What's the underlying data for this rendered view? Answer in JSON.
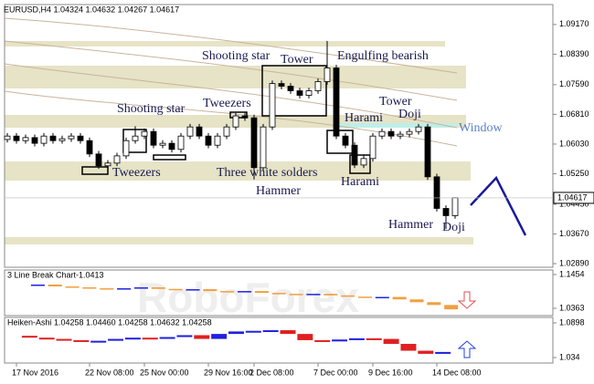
{
  "chart_data": [
    {
      "type": "candlestick",
      "title": "EURUSD,H4  1.04324 1.04632 1.04267 1.04617",
      "categories": [
        null,
        "17 Nov 2016",
        null,
        null,
        null,
        null,
        null,
        null,
        null,
        "22 Nov 08:00",
        null,
        null,
        null,
        null,
        null,
        "25 Nov 00:00",
        null,
        null,
        null,
        null,
        null,
        null,
        "29 Nov 16:00",
        null,
        null,
        null,
        null,
        "2 Dec 08:00",
        null,
        null,
        null,
        null,
        null,
        null,
        "7 Dec 00:00",
        null,
        null,
        null,
        null,
        null,
        "9 Dec 16:00",
        null,
        null,
        null,
        null,
        null,
        null,
        "14 Dec 08:00",
        null,
        null
      ],
      "open": [
        1.0615,
        1.0624,
        1.0612,
        1.062,
        1.0605,
        1.0624,
        1.0612,
        1.0617,
        1.0624,
        1.0612,
        1.0577,
        1.0546,
        1.0553,
        1.0572,
        1.0612,
        1.0624,
        1.0636,
        1.06,
        1.0605,
        1.0589,
        1.0624,
        1.0648,
        1.0624,
        1.06,
        1.0624,
        1.0648,
        1.0677,
        1.0672,
        1.0541,
        1.0648,
        1.0762,
        1.0755,
        1.0743,
        1.0731,
        1.0743,
        1.0767,
        1.0803,
        1.0624,
        1.06,
        1.0548,
        1.0565,
        1.0624,
        1.0636,
        1.0624,
        1.0629,
        1.0636,
        1.0648,
        1.0517,
        1.0434,
        1.0415
      ],
      "high": [
        1.0632,
        1.0632,
        1.0628,
        1.0628,
        1.0632,
        1.0632,
        1.0625,
        1.0632,
        1.0632,
        1.062,
        1.0585,
        1.0561,
        1.058,
        1.062,
        1.065,
        1.0644,
        1.0644,
        1.0613,
        1.0613,
        1.0632,
        1.0656,
        1.0656,
        1.0632,
        1.0632,
        1.0656,
        1.0685,
        1.0685,
        1.068,
        1.0656,
        1.077,
        1.077,
        1.0763,
        1.0751,
        1.0751,
        1.0775,
        1.0874,
        1.0811,
        1.0632,
        1.0608,
        1.0573,
        1.0632,
        1.0644,
        1.0644,
        1.0637,
        1.0644,
        1.0656,
        1.0656,
        1.0525,
        1.0442,
        1.0463
      ],
      "low": [
        1.0607,
        1.0604,
        1.0604,
        1.0597,
        1.0597,
        1.0604,
        1.0604,
        1.0609,
        1.0604,
        1.0569,
        1.0538,
        1.0538,
        1.0545,
        1.0564,
        1.0604,
        1.0616,
        1.0592,
        1.0592,
        1.0581,
        1.0581,
        1.0616,
        1.0616,
        1.0592,
        1.0592,
        1.0616,
        1.064,
        1.0664,
        1.051,
        1.0533,
        1.064,
        1.0747,
        1.0735,
        1.0723,
        1.0723,
        1.0735,
        1.0759,
        1.0616,
        1.0592,
        1.054,
        1.054,
        1.0557,
        1.0616,
        1.0616,
        1.0616,
        1.0621,
        1.0628,
        1.0509,
        1.0426,
        1.038,
        1.0407
      ],
      "close": [
        1.0624,
        1.0612,
        1.062,
        1.0605,
        1.0624,
        1.0612,
        1.0617,
        1.0624,
        1.0612,
        1.0577,
        1.0546,
        1.0553,
        1.0572,
        1.0612,
        1.0624,
        1.0636,
        1.06,
        1.0605,
        1.0589,
        1.0624,
        1.0648,
        1.0624,
        1.06,
        1.0624,
        1.0648,
        1.0677,
        1.0672,
        1.0541,
        1.0648,
        1.0762,
        1.0755,
        1.0743,
        1.0731,
        1.0743,
        1.0767,
        1.0803,
        1.0624,
        1.06,
        1.0548,
        1.0565,
        1.0624,
        1.0636,
        1.0624,
        1.0629,
        1.0636,
        1.0648,
        1.0517,
        1.0434,
        1.0415,
        1.0462
      ],
      "ylim": [
        1.02795,
        1.09694
      ],
      "yticks": [
        {
          "value": 1.0917,
          "label": "1.09170"
        },
        {
          "value": 1.0839,
          "label": "1.08390"
        },
        {
          "value": 1.0759,
          "label": "1.07590"
        },
        {
          "value": 1.0681,
          "label": "1.06810"
        },
        {
          "value": 1.0603,
          "label": "1.06030"
        },
        {
          "value": 1.0525,
          "label": "1.05250"
        },
        {
          "value": 1.0445,
          "label": "1.04450"
        },
        {
          "value": 1.0367,
          "label": "1.03670"
        },
        {
          "value": 1.0289,
          "label": "1.02890"
        }
      ],
      "price_label": {
        "value": 1.04617,
        "label": "1.04617"
      },
      "annotations": [
        "Shooting star",
        "Tower",
        "Engulfing bearish",
        "Shooting star",
        "Tweezers",
        "Tower",
        "Doji",
        "Harami",
        "Window",
        "Tweezers",
        "Three white solders",
        "Hammer",
        "Harami",
        "Hammer",
        "Doji"
      ],
      "up_color": "#ffffff",
      "down_color": "#000000",
      "watermark": "RoboForex"
    },
    {
      "type": "line_break",
      "title": "3 Line Break Chart-1.0413",
      "values": [
        1.11,
        1.113,
        1.107,
        1.104,
        1.101,
        1.098,
        1.101,
        1.104,
        1.099,
        1.095,
        1.098,
        1.092,
        1.089,
        1.092,
        1.086,
        1.083,
        1.08,
        1.083,
        1.078,
        1.074,
        1.07,
        1.073,
        1.065,
        1.056,
        1.047,
        1.033
      ],
      "ylim": [
        1.0127,
        1.1601
      ],
      "yticks": [
        1.1454,
        1.0363
      ],
      "up_color": "#2020e0",
      "down_color": "#f0a040"
    },
    {
      "type": "heikin_ashi",
      "title": "Heiken-Ashi 1.04258 1.04460 1.04258 1.04632 1.04258",
      "values": [
        1.069,
        1.066,
        1.064,
        1.062,
        1.06,
        1.061,
        1.064,
        1.066,
        1.065,
        1.067,
        1.07,
        1.064,
        1.072,
        1.076,
        1.077,
        1.078,
        1.072,
        1.062,
        1.06,
        1.063,
        1.065,
        1.064,
        1.056,
        1.045,
        1.04,
        1.043
      ],
      "ylim": [
        1.0252,
        1.0986
      ],
      "yticks": [
        1.0898,
        1.034
      ],
      "up_color": "#2020e0",
      "down_color": "#e02020"
    }
  ]
}
